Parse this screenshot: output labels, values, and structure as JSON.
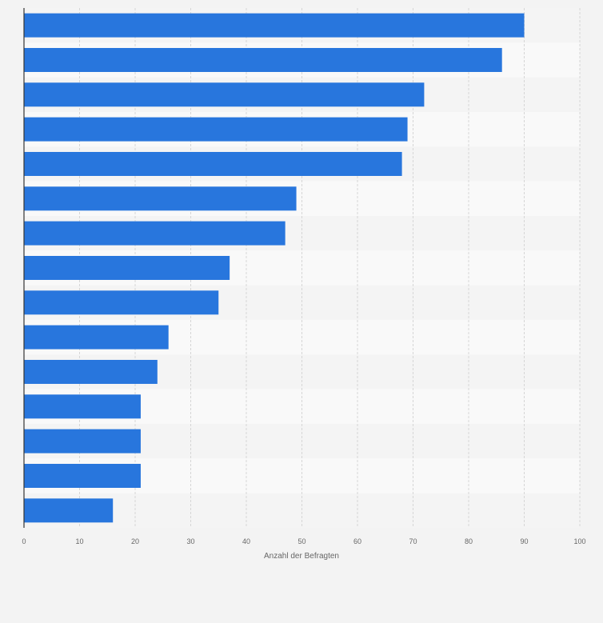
{
  "chart_data": {
    "type": "bar",
    "orientation": "horizontal",
    "values": [
      90,
      86,
      72,
      69,
      68,
      49,
      47,
      37,
      35,
      26,
      24,
      21,
      21,
      21,
      16
    ],
    "xlabel": "Anzahl der Befragten",
    "xlim": [
      0,
      100
    ],
    "x_ticks": [
      "0",
      "10",
      "20",
      "30",
      "40",
      "50",
      "60",
      "70",
      "80",
      "90",
      "100"
    ],
    "grid": true,
    "bar_color": "#2876dd",
    "band_colors": [
      "#f4f4f4",
      "#f9f9f9"
    ]
  }
}
